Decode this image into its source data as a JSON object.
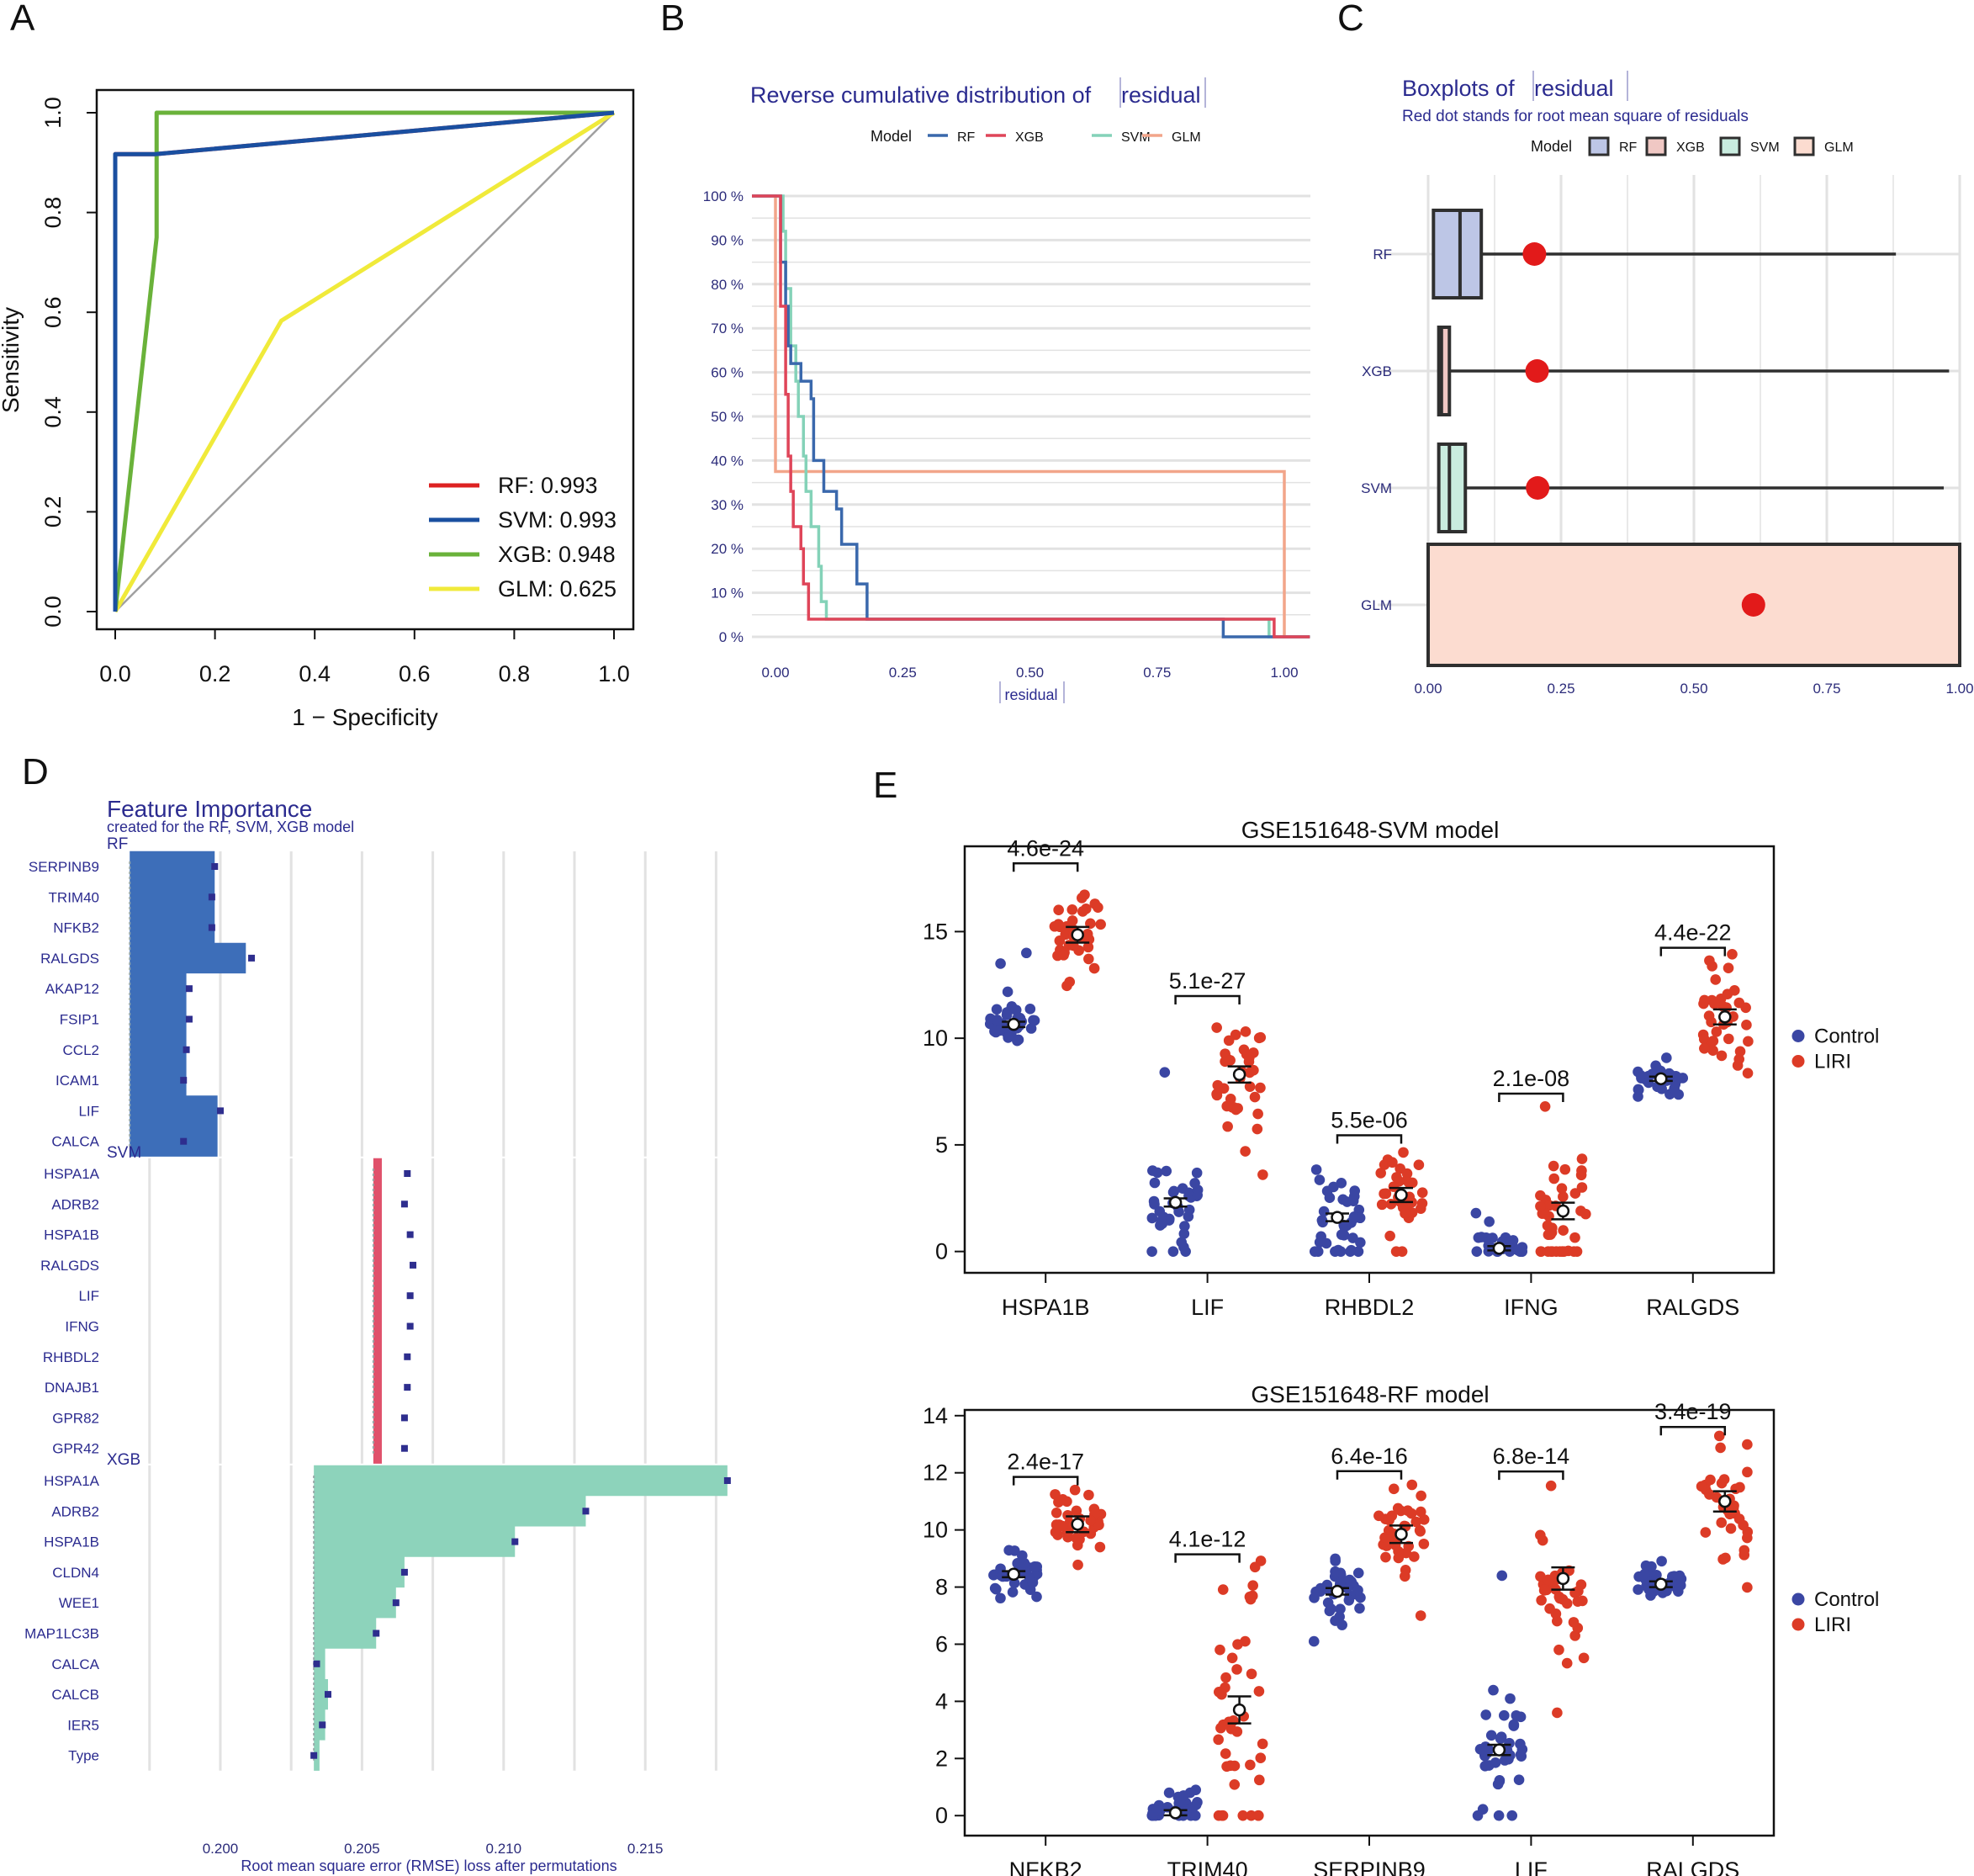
{
  "panels": {
    "A": "A",
    "B": "B",
    "C": "C",
    "D": "D",
    "E": "E"
  },
  "chart_data": [
    {
      "panel": "A",
      "type": "line",
      "xlabel": "1 − Specificity",
      "ylabel": "Sensitivity",
      "xlim": [
        0,
        1
      ],
      "ylim": [
        0,
        1
      ],
      "xticks": [
        "0.0",
        "0.2",
        "0.4",
        "0.6",
        "0.8",
        "1.0"
      ],
      "yticks": [
        "0.0",
        "0.2",
        "0.4",
        "0.6",
        "0.8",
        "1.0"
      ],
      "legend_position": "bottom-right",
      "series": [
        {
          "name": "RF",
          "label": "RF: 0.993",
          "color": "#dd2222",
          "x": [
            0,
            0,
            0.08,
            1
          ],
          "y": [
            0,
            0.917,
            0.917,
            1
          ]
        },
        {
          "name": "SVM",
          "label": "SVM: 0.993",
          "color": "#1a4fa0",
          "x": [
            0,
            0,
            0.08,
            1
          ],
          "y": [
            0,
            0.917,
            0.917,
            1
          ]
        },
        {
          "name": "XGB",
          "label": "XGB: 0.948",
          "color": "#6ab23a",
          "x": [
            0,
            0.083,
            0.083,
            1
          ],
          "y": [
            0,
            0.75,
            1,
            1
          ]
        },
        {
          "name": "GLM",
          "label": "GLM: 0.625",
          "color": "#f0ea3a",
          "x": [
            0,
            0.333,
            1
          ],
          "y": [
            0,
            0.583,
            1
          ]
        }
      ],
      "diagonal_color": "#a0a0a0"
    },
    {
      "panel": "B",
      "type": "line",
      "title_prefix": "Reverse cumulative distribution of",
      "title_var": "residual",
      "xlabel": "residual",
      "legend_title": "Model",
      "xlim": [
        0,
        1.05
      ],
      "xticks": [
        "0.00",
        "0.25",
        "0.50",
        "0.75",
        "1.00"
      ],
      "yticks": [
        "0 %",
        "10 %",
        "20 %",
        "30 %",
        "40 %",
        "50 %",
        "60 %",
        "70 %",
        "80 %",
        "90 %",
        "100 %"
      ],
      "series": [
        {
          "name": "RF",
          "color": "#3a68ac",
          "steps": [
            [
              -0.05,
              1
            ],
            [
              0.01,
              1
            ],
            [
              0.01,
              0.85
            ],
            [
              0.02,
              0.75
            ],
            [
              0.025,
              0.66
            ],
            [
              0.03,
              0.62
            ],
            [
              0.04,
              0.62
            ],
            [
              0.05,
              0.58
            ],
            [
              0.06,
              0.58
            ],
            [
              0.07,
              0.54
            ],
            [
              0.075,
              0.4
            ],
            [
              0.09,
              0.4
            ],
            [
              0.095,
              0.33
            ],
            [
              0.11,
              0.33
            ],
            [
              0.12,
              0.29
            ],
            [
              0.13,
              0.21
            ],
            [
              0.15,
              0.21
            ],
            [
              0.16,
              0.12
            ],
            [
              0.175,
              0.12
            ],
            [
              0.18,
              0.04
            ],
            [
              0.88,
              0.04
            ],
            [
              0.88,
              0
            ],
            [
              1.05,
              0
            ]
          ]
        },
        {
          "name": "XGB",
          "color": "#df4559",
          "steps": [
            [
              -0.05,
              1
            ],
            [
              0.01,
              1
            ],
            [
              0.01,
              0.75
            ],
            [
              0.02,
              0.55
            ],
            [
              0.025,
              0.41
            ],
            [
              0.03,
              0.33
            ],
            [
              0.035,
              0.25
            ],
            [
              0.05,
              0.2
            ],
            [
              0.055,
              0.12
            ],
            [
              0.065,
              0.04
            ],
            [
              0.98,
              0.04
            ],
            [
              0.98,
              0
            ],
            [
              1.05,
              0
            ]
          ]
        },
        {
          "name": "SVM",
          "color": "#84d2b8",
          "steps": [
            [
              -0.05,
              1
            ],
            [
              0.01,
              1
            ],
            [
              0.015,
              0.92
            ],
            [
              0.02,
              0.79
            ],
            [
              0.03,
              0.66
            ],
            [
              0.04,
              0.58
            ],
            [
              0.045,
              0.5
            ],
            [
              0.055,
              0.41
            ],
            [
              0.06,
              0.33
            ],
            [
              0.07,
              0.25
            ],
            [
              0.085,
              0.16
            ],
            [
              0.09,
              0.08
            ],
            [
              0.1,
              0.04
            ],
            [
              0.97,
              0.04
            ],
            [
              0.97,
              0
            ],
            [
              1.05,
              0
            ]
          ]
        },
        {
          "name": "GLM",
          "color": "#f2a58a",
          "steps": [
            [
              -0.05,
              1
            ],
            [
              0.0,
              1
            ],
            [
              0.0,
              0.375
            ],
            [
              1.0,
              0.375
            ],
            [
              1.0,
              0
            ],
            [
              1.05,
              0
            ]
          ]
        }
      ]
    },
    {
      "panel": "C",
      "type": "box",
      "title_prefix": "Boxplots of",
      "title_var": "residual",
      "subtitle": "Red dot stands for root mean square of residuals",
      "legend_title": "Model",
      "xlim": [
        0,
        1
      ],
      "xticks": [
        "0.00",
        "0.25",
        "0.50",
        "0.75",
        "1.00"
      ],
      "categories": [
        "RF",
        "XGB",
        "SVM",
        "GLM"
      ],
      "boxes": [
        {
          "name": "RF",
          "q1": 0.01,
          "median": 0.06,
          "q3": 0.1,
          "whisker_max": 0.88,
          "rmse": 0.2,
          "fill": "#bdc6e6"
        },
        {
          "name": "XGB",
          "q1": 0.02,
          "median": 0.025,
          "q3": 0.04,
          "whisker_max": 0.98,
          "rmse": 0.205,
          "fill": "#f0c8c4"
        },
        {
          "name": "SVM",
          "q1": 0.02,
          "median": 0.04,
          "q3": 0.07,
          "whisker_max": 0.97,
          "rmse": 0.206,
          "fill": "#c9ecdf"
        },
        {
          "name": "GLM",
          "q1": 0.0,
          "median": 0.0,
          "q3": 1.0,
          "whisker_max": 1.0,
          "rmse": 0.612,
          "fill": "#fcdcd0"
        }
      ]
    },
    {
      "panel": "D",
      "type": "bar",
      "title": "Feature Importance",
      "subtitle": "created for the RF, SVM, XGB model",
      "xlabel": "Root mean square error (RMSE) loss after permutations",
      "xlim": [
        0.1967,
        0.2177
      ],
      "xticks": [
        "0.200",
        "0.205",
        "0.210",
        "0.215"
      ],
      "tick_values": [
        0.2,
        0.205,
        0.21,
        0.215
      ],
      "groups": [
        {
          "name": "RF",
          "color": "#3d6eb9",
          "baseline": 0.1968,
          "features": [
            "SERPINB9",
            "TRIM40",
            "NFKB2",
            "RALGDS",
            "AKAP12",
            "FSIP1",
            "CCL2",
            "ICAM1",
            "LIF",
            "CALCA"
          ],
          "values": [
            0.1998,
            0.1998,
            0.1998,
            0.2009,
            0.1988,
            0.1988,
            0.1988,
            0.1988,
            0.1999,
            0.1999
          ],
          "dots": [
            0.1998,
            0.1997,
            0.1997,
            0.2011,
            0.1989,
            0.1989,
            0.1988,
            0.1987,
            0.2,
            0.1987
          ]
        },
        {
          "name": "SVM",
          "color": "#e0516b",
          "baseline": 0.2054,
          "features": [
            "HSPA1A",
            "ADRB2",
            "HSPA1B",
            "RALGDS",
            "LIF",
            "IFNG",
            "RHBDL2",
            "DNAJB1",
            "GPR82",
            "GPR42"
          ],
          "values": [
            0.2057,
            0.2057,
            0.2057,
            0.2057,
            0.2057,
            0.2057,
            0.2057,
            0.2057,
            0.2057,
            0.2057
          ],
          "dots": [
            0.2066,
            0.2065,
            0.2067,
            0.2068,
            0.2067,
            0.2067,
            0.2066,
            0.2066,
            0.2065,
            0.2065
          ]
        },
        {
          "name": "XGB",
          "color": "#8dd3bb",
          "baseline": 0.2033,
          "features": [
            "HSPA1A",
            "ADRB2",
            "HSPA1B",
            "CLDN4",
            "WEE1",
            "MAP1LC3B",
            "CALCA",
            "CALCB",
            "IER5",
            "Type"
          ],
          "values": [
            0.2179,
            0.2129,
            0.2104,
            0.2065,
            0.2062,
            0.2055,
            0.2037,
            0.2038,
            0.2037,
            0.2035
          ],
          "dots": [
            0.2179,
            0.2129,
            0.2104,
            0.2065,
            0.2062,
            0.2055,
            0.2034,
            0.2038,
            0.2036,
            0.2033
          ]
        }
      ]
    },
    {
      "panel": "E1",
      "type": "scatter",
      "title": "GSE151648-SVM model",
      "categories": [
        "HSPA1B",
        "LIF",
        "RHBDL2",
        "IFNG",
        "RALGDS"
      ],
      "ylim": [
        -1,
        19
      ],
      "yticks": [
        0,
        5,
        10,
        15
      ],
      "legend": [
        "Control",
        "LIRI"
      ],
      "legend_position": "right",
      "colors": {
        "Control": "#3a46a3",
        "LIRI": "#dc3b26"
      },
      "groups": [
        {
          "gene": "HSPA1B",
          "pvalue": "4.6e-24",
          "control_mean": 10.65,
          "control_sd": 0.55,
          "liri_mean": 14.85,
          "liri_sd": 1.3,
          "control_extra": [
            14.0,
            13.5
          ],
          "liri_extra": []
        },
        {
          "gene": "LIF",
          "pvalue": "5.1e-27",
          "control_mean": 2.3,
          "control_sd": 1.1,
          "liri_mean": 8.3,
          "liri_sd": 1.4,
          "control_extra": [
            8.4,
            0,
            0,
            0
          ],
          "liri_extra": [
            3.6
          ]
        },
        {
          "gene": "RHBDL2",
          "pvalue": "5.5e-06",
          "control_mean": 1.6,
          "control_sd": 1.0,
          "liri_mean": 2.65,
          "liri_sd": 1.0,
          "control_extra": [
            0,
            0,
            0
          ],
          "liri_extra": [
            0,
            0
          ]
        },
        {
          "gene": "IFNG",
          "pvalue": "2.1e-08",
          "control_mean": 0.15,
          "control_sd": 0.35,
          "liri_mean": 1.9,
          "liri_sd": 1.5,
          "control_extra": [
            1.8,
            1.4
          ],
          "liri_extra": [
            6.8,
            0,
            0,
            0,
            0
          ]
        },
        {
          "gene": "RALGDS",
          "pvalue": "4.4e-22",
          "control_mean": 8.1,
          "control_sd": 0.35,
          "liri_mean": 11.0,
          "liri_sd": 1.2,
          "control_extra": [],
          "liri_extra": []
        }
      ]
    },
    {
      "panel": "E2",
      "type": "scatter",
      "title": "GSE151648-RF model",
      "categories": [
        "NFKB2",
        "TRIM40",
        "SERPINB9",
        "LIF",
        "RALGDS"
      ],
      "ylim": [
        -0.7,
        14.2
      ],
      "yticks": [
        0,
        2,
        4,
        6,
        8,
        10,
        12,
        14
      ],
      "legend": [
        "Control",
        "LIRI"
      ],
      "legend_position": "right",
      "colors": {
        "Control": "#3a46a3",
        "LIRI": "#dc3b26"
      },
      "groups": [
        {
          "gene": "NFKB2",
          "pvalue": "2.4e-17",
          "control_mean": 8.45,
          "control_sd": 0.4,
          "liri_mean": 10.2,
          "liri_sd": 0.55,
          "control_extra": [],
          "liri_extra": []
        },
        {
          "gene": "TRIM40",
          "pvalue": "4.1e-12",
          "control_mean": 0.1,
          "control_sd": 0.25,
          "liri_mean": 3.7,
          "liri_sd": 2.2,
          "control_extra": [
            0.9,
            0.8,
            0.8
          ],
          "liri_extra": [
            0,
            0,
            0,
            0,
            0,
            8.7
          ]
        },
        {
          "gene": "SERPINB9",
          "pvalue": "6.4e-16",
          "control_mean": 7.85,
          "control_sd": 0.45,
          "liri_mean": 9.85,
          "liri_sd": 0.8,
          "control_extra": [
            6.1
          ],
          "liri_extra": [
            7.0
          ]
        },
        {
          "gene": "LIF",
          "pvalue": "6.8e-14",
          "control_mean": 2.3,
          "control_sd": 1.0,
          "liri_mean": 8.3,
          "liri_sd": 1.5,
          "control_extra": [
            8.4,
            0,
            0,
            0
          ],
          "liri_extra": [
            3.6
          ]
        },
        {
          "gene": "RALGDS",
          "pvalue": "3.4e-19",
          "control_mean": 8.1,
          "control_sd": 0.35,
          "liri_mean": 11.0,
          "liri_sd": 1.2,
          "control_extra": [],
          "liri_extra": []
        }
      ]
    }
  ]
}
